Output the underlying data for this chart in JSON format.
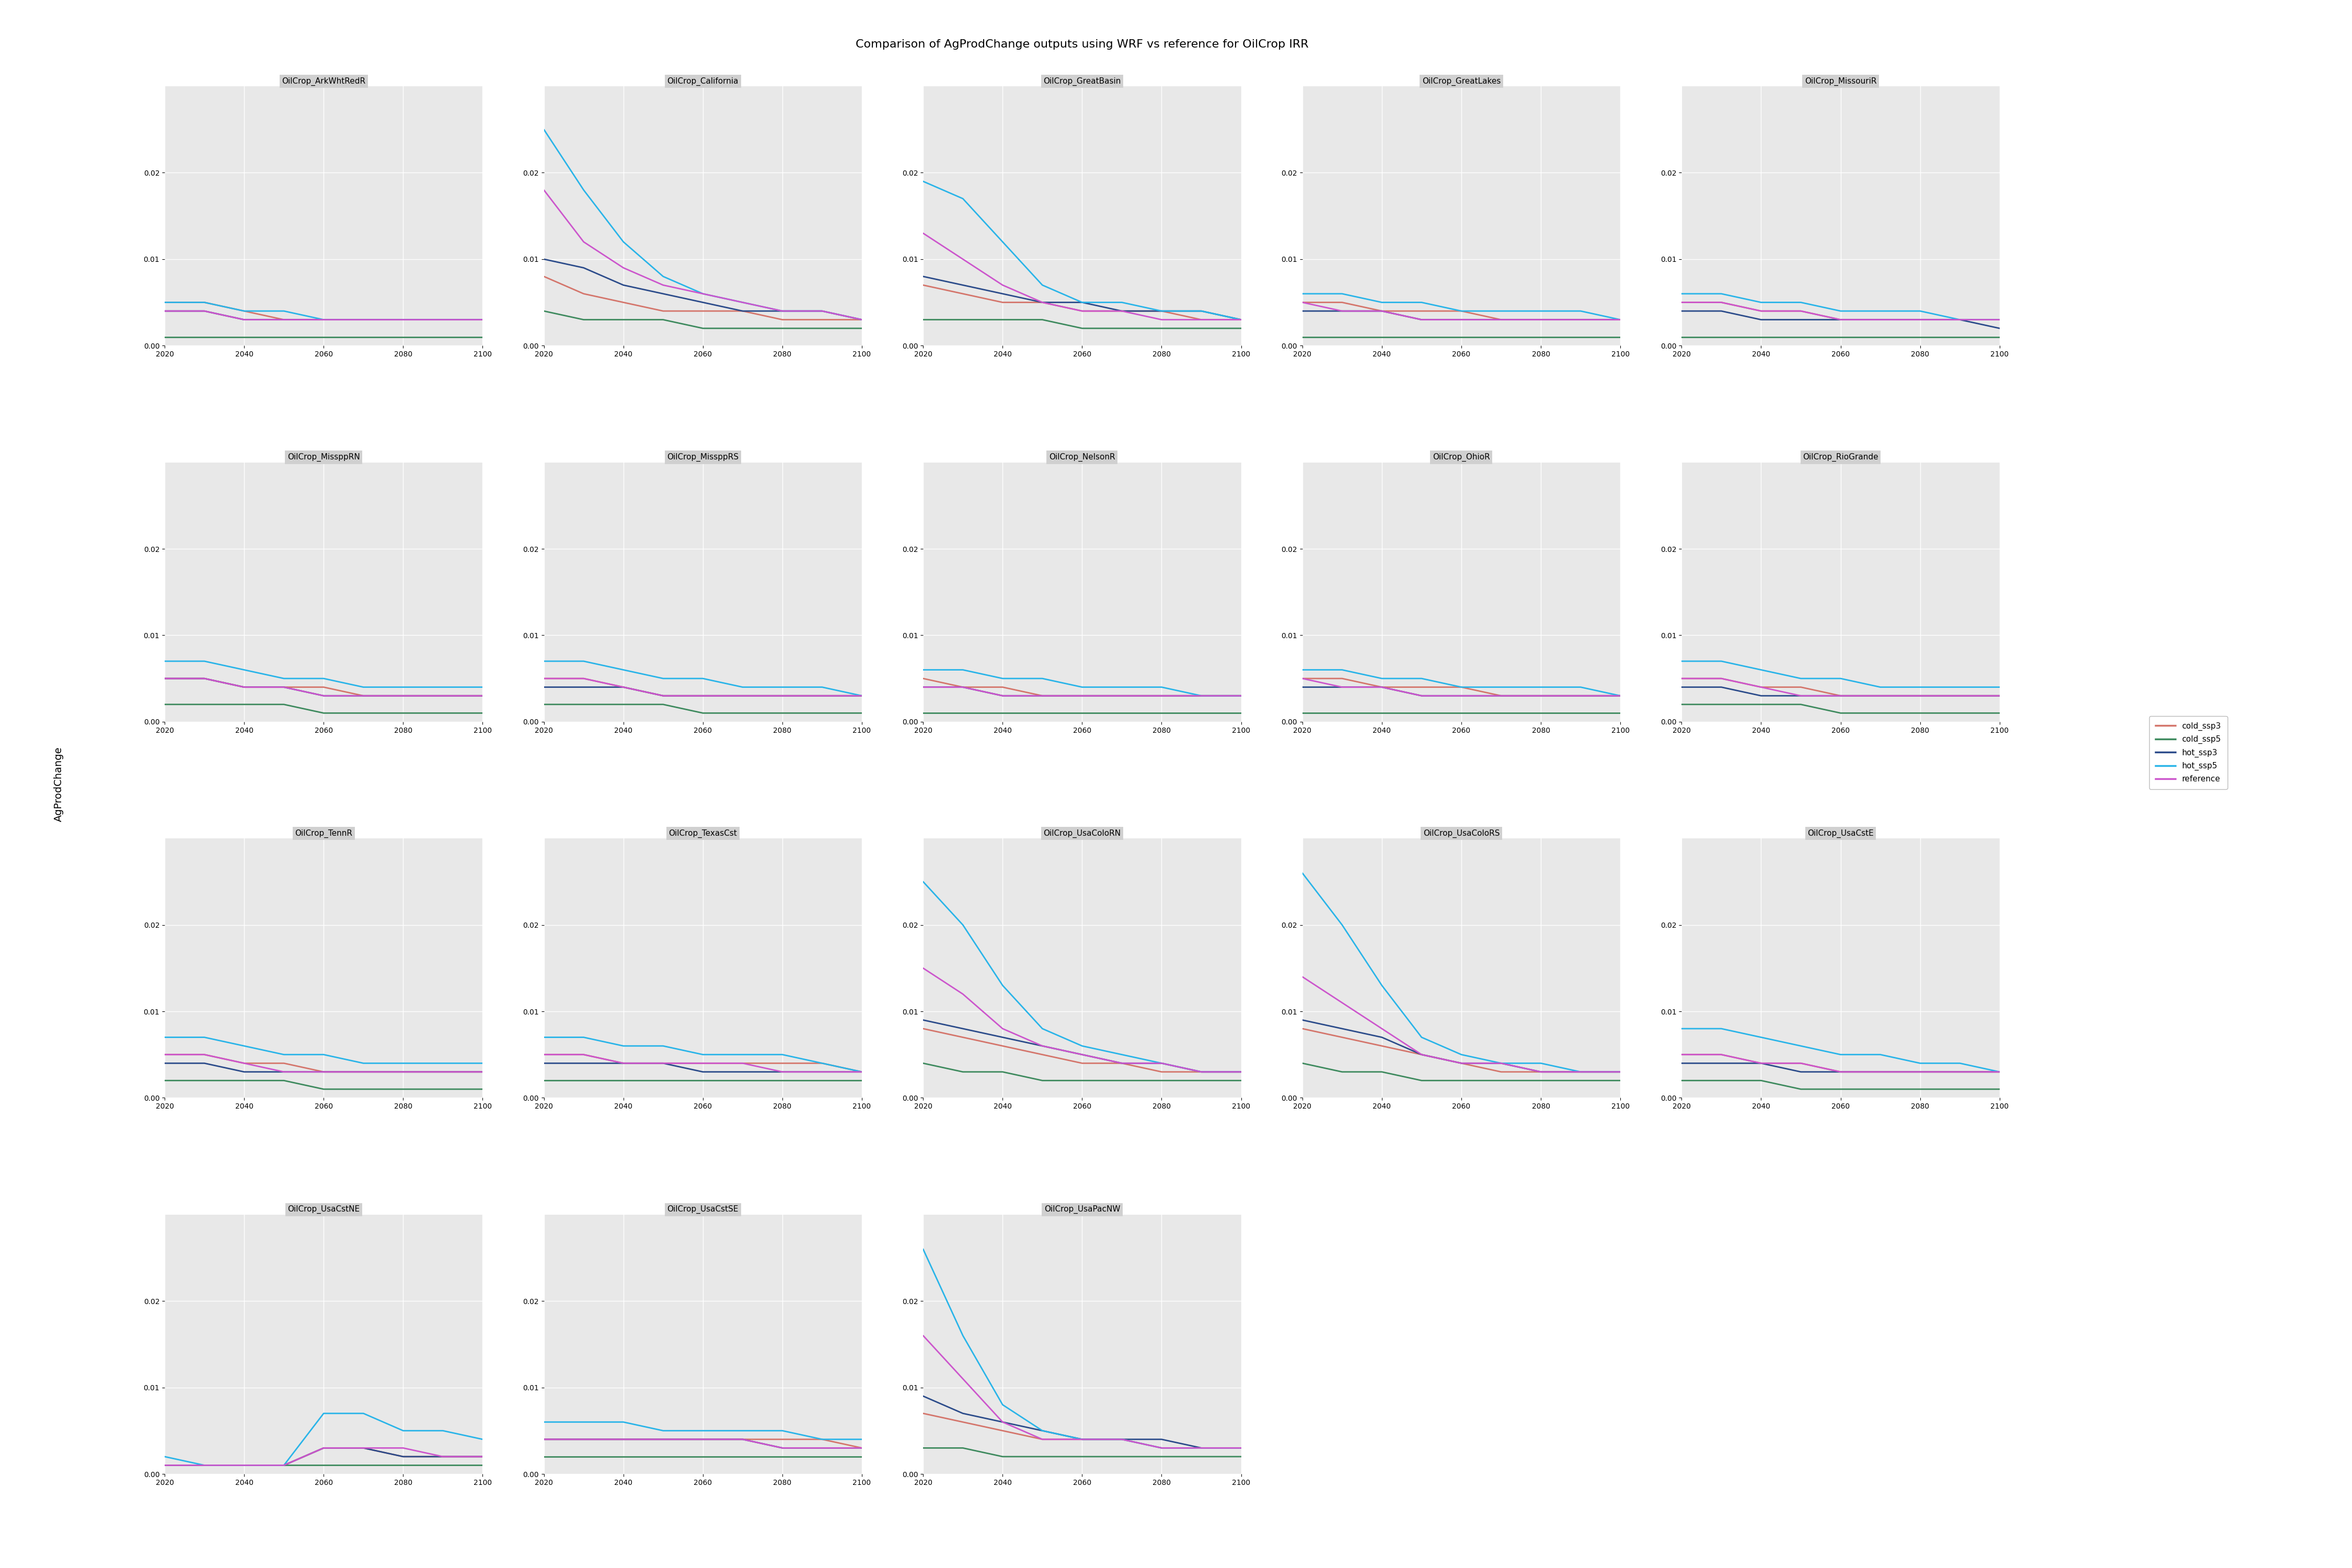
{
  "title": "Comparison of AgProdChange outputs using WRF vs reference for OilCrop IRR",
  "ylabel": "AgProdChange",
  "subplot_titles": [
    "OilCrop_ArkWhtRedR",
    "OilCrop_California",
    "OilCrop_GreatBasin",
    "OilCrop_GreatLakes",
    "OilCrop_MissouriR",
    "OilCrop_MissppRN",
    "OilCrop_MissppRS",
    "OilCrop_NelsonR",
    "OilCrop_OhioR",
    "OilCrop_RioGrande",
    "OilCrop_TennR",
    "OilCrop_TexasCst",
    "OilCrop_UsaColoRN",
    "OilCrop_UsaColoRS",
    "OilCrop_UsaCstE",
    "OilCrop_UsaCstNE",
    "OilCrop_UsaCstSE",
    "OilCrop_UsaPacNW"
  ],
  "series_names": [
    "cold_ssp3",
    "cold_ssp5",
    "hot_ssp3",
    "hot_ssp5",
    "reference"
  ],
  "series_colors": [
    "#d4756b",
    "#3e8a5e",
    "#2b4b8a",
    "#29b4e8",
    "#cc55cc"
  ],
  "x": [
    2020,
    2030,
    2040,
    2050,
    2060,
    2070,
    2080,
    2090,
    2100
  ],
  "data": {
    "OilCrop_ArkWhtRedR": {
      "cold_ssp3": [
        0.005,
        0.005,
        0.004,
        0.003,
        0.003,
        0.003,
        0.003,
        0.003,
        0.003
      ],
      "cold_ssp5": [
        0.001,
        0.001,
        0.001,
        0.001,
        0.001,
        0.001,
        0.001,
        0.001,
        0.001
      ],
      "hot_ssp3": [
        0.004,
        0.004,
        0.003,
        0.003,
        0.003,
        0.003,
        0.003,
        0.003,
        0.003
      ],
      "hot_ssp5": [
        0.005,
        0.005,
        0.004,
        0.004,
        0.003,
        0.003,
        0.003,
        0.003,
        0.003
      ],
      "reference": [
        0.004,
        0.004,
        0.003,
        0.003,
        0.003,
        0.003,
        0.003,
        0.003,
        0.003
      ]
    },
    "OilCrop_California": {
      "cold_ssp3": [
        0.008,
        0.006,
        0.005,
        0.004,
        0.004,
        0.004,
        0.003,
        0.003,
        0.003
      ],
      "cold_ssp5": [
        0.004,
        0.003,
        0.003,
        0.003,
        0.002,
        0.002,
        0.002,
        0.002,
        0.002
      ],
      "hot_ssp3": [
        0.01,
        0.009,
        0.007,
        0.006,
        0.005,
        0.004,
        0.004,
        0.004,
        0.003
      ],
      "hot_ssp5": [
        0.025,
        0.018,
        0.012,
        0.008,
        0.006,
        0.005,
        0.004,
        0.004,
        0.003
      ],
      "reference": [
        0.018,
        0.012,
        0.009,
        0.007,
        0.006,
        0.005,
        0.004,
        0.004,
        0.003
      ]
    },
    "OilCrop_GreatBasin": {
      "cold_ssp3": [
        0.007,
        0.006,
        0.005,
        0.005,
        0.004,
        0.004,
        0.004,
        0.003,
        0.003
      ],
      "cold_ssp5": [
        0.003,
        0.003,
        0.003,
        0.003,
        0.002,
        0.002,
        0.002,
        0.002,
        0.002
      ],
      "hot_ssp3": [
        0.008,
        0.007,
        0.006,
        0.005,
        0.005,
        0.004,
        0.004,
        0.004,
        0.003
      ],
      "hot_ssp5": [
        0.019,
        0.017,
        0.012,
        0.007,
        0.005,
        0.005,
        0.004,
        0.004,
        0.003
      ],
      "reference": [
        0.013,
        0.01,
        0.007,
        0.005,
        0.004,
        0.004,
        0.003,
        0.003,
        0.003
      ]
    },
    "OilCrop_GreatLakes": {
      "cold_ssp3": [
        0.005,
        0.005,
        0.004,
        0.004,
        0.004,
        0.003,
        0.003,
        0.003,
        0.003
      ],
      "cold_ssp5": [
        0.001,
        0.001,
        0.001,
        0.001,
        0.001,
        0.001,
        0.001,
        0.001,
        0.001
      ],
      "hot_ssp3": [
        0.004,
        0.004,
        0.004,
        0.003,
        0.003,
        0.003,
        0.003,
        0.003,
        0.003
      ],
      "hot_ssp5": [
        0.006,
        0.006,
        0.005,
        0.005,
        0.004,
        0.004,
        0.004,
        0.004,
        0.003
      ],
      "reference": [
        0.005,
        0.004,
        0.004,
        0.003,
        0.003,
        0.003,
        0.003,
        0.003,
        0.003
      ]
    },
    "OilCrop_MissouriR": {
      "cold_ssp3": [
        0.005,
        0.005,
        0.004,
        0.004,
        0.003,
        0.003,
        0.003,
        0.003,
        0.003
      ],
      "cold_ssp5": [
        0.001,
        0.001,
        0.001,
        0.001,
        0.001,
        0.001,
        0.001,
        0.001,
        0.001
      ],
      "hot_ssp3": [
        0.004,
        0.004,
        0.003,
        0.003,
        0.003,
        0.003,
        0.003,
        0.003,
        0.002
      ],
      "hot_ssp5": [
        0.006,
        0.006,
        0.005,
        0.005,
        0.004,
        0.004,
        0.004,
        0.003,
        0.003
      ],
      "reference": [
        0.005,
        0.005,
        0.004,
        0.004,
        0.003,
        0.003,
        0.003,
        0.003,
        0.003
      ]
    },
    "OilCrop_MissppRN": {
      "cold_ssp3": [
        0.005,
        0.005,
        0.004,
        0.004,
        0.004,
        0.003,
        0.003,
        0.003,
        0.003
      ],
      "cold_ssp5": [
        0.002,
        0.002,
        0.002,
        0.002,
        0.001,
        0.001,
        0.001,
        0.001,
        0.001
      ],
      "hot_ssp3": [
        0.005,
        0.005,
        0.004,
        0.004,
        0.003,
        0.003,
        0.003,
        0.003,
        0.003
      ],
      "hot_ssp5": [
        0.007,
        0.007,
        0.006,
        0.005,
        0.005,
        0.004,
        0.004,
        0.004,
        0.004
      ],
      "reference": [
        0.005,
        0.005,
        0.004,
        0.004,
        0.003,
        0.003,
        0.003,
        0.003,
        0.003
      ]
    },
    "OilCrop_MissppRS": {
      "cold_ssp3": [
        0.005,
        0.005,
        0.004,
        0.003,
        0.003,
        0.003,
        0.003,
        0.003,
        0.003
      ],
      "cold_ssp5": [
        0.002,
        0.002,
        0.002,
        0.002,
        0.001,
        0.001,
        0.001,
        0.001,
        0.001
      ],
      "hot_ssp3": [
        0.004,
        0.004,
        0.004,
        0.003,
        0.003,
        0.003,
        0.003,
        0.003,
        0.003
      ],
      "hot_ssp5": [
        0.007,
        0.007,
        0.006,
        0.005,
        0.005,
        0.004,
        0.004,
        0.004,
        0.003
      ],
      "reference": [
        0.005,
        0.005,
        0.004,
        0.003,
        0.003,
        0.003,
        0.003,
        0.003,
        0.003
      ]
    },
    "OilCrop_NelsonR": {
      "cold_ssp3": [
        0.005,
        0.004,
        0.004,
        0.003,
        0.003,
        0.003,
        0.003,
        0.003,
        0.003
      ],
      "cold_ssp5": [
        0.001,
        0.001,
        0.001,
        0.001,
        0.001,
        0.001,
        0.001,
        0.001,
        0.001
      ],
      "hot_ssp3": [
        0.004,
        0.004,
        0.003,
        0.003,
        0.003,
        0.003,
        0.003,
        0.003,
        0.003
      ],
      "hot_ssp5": [
        0.006,
        0.006,
        0.005,
        0.005,
        0.004,
        0.004,
        0.004,
        0.003,
        0.003
      ],
      "reference": [
        0.004,
        0.004,
        0.003,
        0.003,
        0.003,
        0.003,
        0.003,
        0.003,
        0.003
      ]
    },
    "OilCrop_OhioR": {
      "cold_ssp3": [
        0.005,
        0.005,
        0.004,
        0.004,
        0.004,
        0.003,
        0.003,
        0.003,
        0.003
      ],
      "cold_ssp5": [
        0.001,
        0.001,
        0.001,
        0.001,
        0.001,
        0.001,
        0.001,
        0.001,
        0.001
      ],
      "hot_ssp3": [
        0.004,
        0.004,
        0.004,
        0.003,
        0.003,
        0.003,
        0.003,
        0.003,
        0.003
      ],
      "hot_ssp5": [
        0.006,
        0.006,
        0.005,
        0.005,
        0.004,
        0.004,
        0.004,
        0.004,
        0.003
      ],
      "reference": [
        0.005,
        0.004,
        0.004,
        0.003,
        0.003,
        0.003,
        0.003,
        0.003,
        0.003
      ]
    },
    "OilCrop_RioGrande": {
      "cold_ssp3": [
        0.005,
        0.005,
        0.004,
        0.004,
        0.003,
        0.003,
        0.003,
        0.003,
        0.003
      ],
      "cold_ssp5": [
        0.002,
        0.002,
        0.002,
        0.002,
        0.001,
        0.001,
        0.001,
        0.001,
        0.001
      ],
      "hot_ssp3": [
        0.004,
        0.004,
        0.003,
        0.003,
        0.003,
        0.003,
        0.003,
        0.003,
        0.003
      ],
      "hot_ssp5": [
        0.007,
        0.007,
        0.006,
        0.005,
        0.005,
        0.004,
        0.004,
        0.004,
        0.004
      ],
      "reference": [
        0.005,
        0.005,
        0.004,
        0.003,
        0.003,
        0.003,
        0.003,
        0.003,
        0.003
      ]
    },
    "OilCrop_TennR": {
      "cold_ssp3": [
        0.005,
        0.005,
        0.004,
        0.004,
        0.003,
        0.003,
        0.003,
        0.003,
        0.003
      ],
      "cold_ssp5": [
        0.002,
        0.002,
        0.002,
        0.002,
        0.001,
        0.001,
        0.001,
        0.001,
        0.001
      ],
      "hot_ssp3": [
        0.004,
        0.004,
        0.003,
        0.003,
        0.003,
        0.003,
        0.003,
        0.003,
        0.003
      ],
      "hot_ssp5": [
        0.007,
        0.007,
        0.006,
        0.005,
        0.005,
        0.004,
        0.004,
        0.004,
        0.004
      ],
      "reference": [
        0.005,
        0.005,
        0.004,
        0.003,
        0.003,
        0.003,
        0.003,
        0.003,
        0.003
      ]
    },
    "OilCrop_TexasCst": {
      "cold_ssp3": [
        0.005,
        0.005,
        0.004,
        0.004,
        0.004,
        0.004,
        0.004,
        0.004,
        0.003
      ],
      "cold_ssp5": [
        0.002,
        0.002,
        0.002,
        0.002,
        0.002,
        0.002,
        0.002,
        0.002,
        0.002
      ],
      "hot_ssp3": [
        0.004,
        0.004,
        0.004,
        0.004,
        0.003,
        0.003,
        0.003,
        0.003,
        0.003
      ],
      "hot_ssp5": [
        0.007,
        0.007,
        0.006,
        0.006,
        0.005,
        0.005,
        0.005,
        0.004,
        0.003
      ],
      "reference": [
        0.005,
        0.005,
        0.004,
        0.004,
        0.004,
        0.004,
        0.003,
        0.003,
        0.003
      ]
    },
    "OilCrop_UsaColoRN": {
      "cold_ssp3": [
        0.008,
        0.007,
        0.006,
        0.005,
        0.004,
        0.004,
        0.003,
        0.003,
        0.003
      ],
      "cold_ssp5": [
        0.004,
        0.003,
        0.003,
        0.002,
        0.002,
        0.002,
        0.002,
        0.002,
        0.002
      ],
      "hot_ssp3": [
        0.009,
        0.008,
        0.007,
        0.006,
        0.005,
        0.004,
        0.004,
        0.003,
        0.003
      ],
      "hot_ssp5": [
        0.025,
        0.02,
        0.013,
        0.008,
        0.006,
        0.005,
        0.004,
        0.003,
        0.003
      ],
      "reference": [
        0.015,
        0.012,
        0.008,
        0.006,
        0.005,
        0.004,
        0.004,
        0.003,
        0.003
      ]
    },
    "OilCrop_UsaColoRS": {
      "cold_ssp3": [
        0.008,
        0.007,
        0.006,
        0.005,
        0.004,
        0.003,
        0.003,
        0.003,
        0.003
      ],
      "cold_ssp5": [
        0.004,
        0.003,
        0.003,
        0.002,
        0.002,
        0.002,
        0.002,
        0.002,
        0.002
      ],
      "hot_ssp3": [
        0.009,
        0.008,
        0.007,
        0.005,
        0.004,
        0.004,
        0.003,
        0.003,
        0.003
      ],
      "hot_ssp5": [
        0.026,
        0.02,
        0.013,
        0.007,
        0.005,
        0.004,
        0.004,
        0.003,
        0.003
      ],
      "reference": [
        0.014,
        0.011,
        0.008,
        0.005,
        0.004,
        0.004,
        0.003,
        0.003,
        0.003
      ]
    },
    "OilCrop_UsaCstE": {
      "cold_ssp3": [
        0.005,
        0.005,
        0.004,
        0.004,
        0.003,
        0.003,
        0.003,
        0.003,
        0.003
      ],
      "cold_ssp5": [
        0.002,
        0.002,
        0.002,
        0.001,
        0.001,
        0.001,
        0.001,
        0.001,
        0.001
      ],
      "hot_ssp3": [
        0.004,
        0.004,
        0.004,
        0.003,
        0.003,
        0.003,
        0.003,
        0.003,
        0.003
      ],
      "hot_ssp5": [
        0.008,
        0.008,
        0.007,
        0.006,
        0.005,
        0.005,
        0.004,
        0.004,
        0.003
      ],
      "reference": [
        0.005,
        0.005,
        0.004,
        0.004,
        0.003,
        0.003,
        0.003,
        0.003,
        0.003
      ]
    },
    "OilCrop_UsaCstNE": {
      "cold_ssp3": [
        0.001,
        0.001,
        0.001,
        0.001,
        0.003,
        0.003,
        0.002,
        0.002,
        0.002
      ],
      "cold_ssp5": [
        0.001,
        0.001,
        0.001,
        0.001,
        0.001,
        0.001,
        0.001,
        0.001,
        0.001
      ],
      "hot_ssp3": [
        0.001,
        0.001,
        0.001,
        0.001,
        0.003,
        0.003,
        0.002,
        0.002,
        0.002
      ],
      "hot_ssp5": [
        0.002,
        0.001,
        0.001,
        0.001,
        0.007,
        0.007,
        0.005,
        0.005,
        0.004
      ],
      "reference": [
        0.001,
        0.001,
        0.001,
        0.001,
        0.003,
        0.003,
        0.003,
        0.002,
        0.002
      ]
    },
    "OilCrop_UsaCstSE": {
      "cold_ssp3": [
        0.004,
        0.004,
        0.004,
        0.004,
        0.004,
        0.004,
        0.004,
        0.004,
        0.003
      ],
      "cold_ssp5": [
        0.002,
        0.002,
        0.002,
        0.002,
        0.002,
        0.002,
        0.002,
        0.002,
        0.002
      ],
      "hot_ssp3": [
        0.004,
        0.004,
        0.004,
        0.004,
        0.004,
        0.004,
        0.003,
        0.003,
        0.003
      ],
      "hot_ssp5": [
        0.006,
        0.006,
        0.006,
        0.005,
        0.005,
        0.005,
        0.005,
        0.004,
        0.004
      ],
      "reference": [
        0.004,
        0.004,
        0.004,
        0.004,
        0.004,
        0.004,
        0.003,
        0.003,
        0.003
      ]
    },
    "OilCrop_UsaPacNW": {
      "cold_ssp3": [
        0.007,
        0.006,
        0.005,
        0.004,
        0.004,
        0.004,
        0.003,
        0.003,
        0.003
      ],
      "cold_ssp5": [
        0.003,
        0.003,
        0.002,
        0.002,
        0.002,
        0.002,
        0.002,
        0.002,
        0.002
      ],
      "hot_ssp3": [
        0.009,
        0.007,
        0.006,
        0.005,
        0.004,
        0.004,
        0.004,
        0.003,
        0.003
      ],
      "hot_ssp5": [
        0.026,
        0.016,
        0.008,
        0.005,
        0.004,
        0.004,
        0.003,
        0.003,
        0.003
      ],
      "reference": [
        0.016,
        0.011,
        0.006,
        0.004,
        0.004,
        0.004,
        0.003,
        0.003,
        0.003
      ]
    }
  },
  "panel_bg": "#e8e8e8",
  "strip_bg": "#d0d0d0",
  "grid_color": "#ffffff",
  "ylim": [
    0.0,
    0.03
  ],
  "yticks": [
    0.0,
    0.01,
    0.02
  ],
  "xlim": [
    2020,
    2100
  ],
  "xticks": [
    2020,
    2040,
    2060,
    2080,
    2100
  ],
  "title_fontsize": 16,
  "strip_fontsize": 11,
  "tick_fontsize": 10,
  "legend_fontsize": 11,
  "ylabel_fontsize": 14,
  "line_width": 2.0
}
